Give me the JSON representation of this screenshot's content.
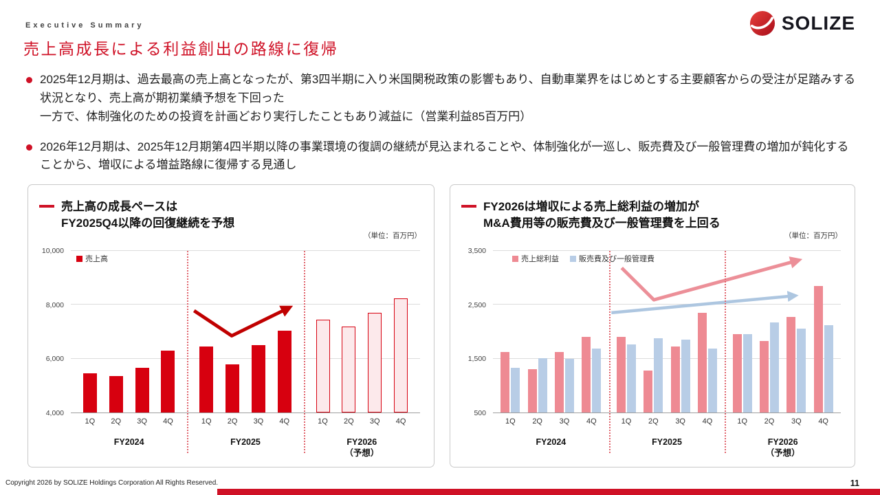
{
  "header": {
    "eyebrow": "Executive Summary",
    "title": "売上高成長による利益創出の路線に復帰",
    "logo_text": "SOLIZE"
  },
  "bullets": [
    "2025年12月期は、過去最高の売上高となったが、第3四半期に入り米国関税政策の影響もあり、自動車業界をはじめとする主要顧客からの受注が足踏みする状況となり、売上高が期初業績予想を下回った\n一方で、体制強化のための投資を計画どおり実行したこともあり減益に（営業利益85百万円）",
    "2026年12月期は、2025年12月期第4四半期以降の事業環境の復調の継続が見込まれることや、体制強化が一巡し、販売費及び一般管理費の増加が鈍化することから、増収による増益路線に復帰する見通し"
  ],
  "colors": {
    "accent_red": "#cf1126",
    "separator_red": "#e0646c",
    "sales_bar": "#d7000f",
    "sales_forecast_fill": "#fce9eb",
    "gross_profit_bar": "#ee8a93",
    "sga_bar": "#b8cde6"
  },
  "chart_data": [
    {
      "type": "bar",
      "title_lines": [
        "売上高の成長ペースは",
        "FY2025Q4以降の回復継続を予想"
      ],
      "unit": "（単位：百万円）",
      "ymin": 4000,
      "ymax": 10000,
      "yticks": [
        {
          "v": 4000,
          "label": "4,000"
        },
        {
          "v": 6000,
          "label": "6,000"
        },
        {
          "v": 8000,
          "label": "8,000"
        },
        {
          "v": 10000,
          "label": "10,000"
        }
      ],
      "quarters": [
        "1Q",
        "2Q",
        "3Q",
        "4Q"
      ],
      "series": [
        {
          "key": "sales",
          "name": "売上高",
          "color": "#d7000f",
          "forecast_fill": "#fce9eb",
          "forecast_border": "#d7000f"
        }
      ],
      "groups": [
        {
          "label": "FY2024",
          "sublabel": "",
          "forecast": false,
          "values": {
            "sales": [
              5450,
              5350,
              5650,
              6300
            ]
          }
        },
        {
          "label": "FY2025",
          "sublabel": "",
          "forecast": false,
          "values": {
            "sales": [
              6450,
              5800,
              6500,
              7050
            ]
          }
        },
        {
          "label": "FY2026",
          "sublabel": "（予想）",
          "forecast": true,
          "values": {
            "sales": [
              7450,
              7200,
              7700,
              8250
            ]
          }
        }
      ]
    },
    {
      "type": "bar",
      "title_lines": [
        "FY2026は増収による売上総利益の増加が",
        "M&A費用等の販売費及び一般管理費を上回る"
      ],
      "unit": "（単位：百万円）",
      "ymin": 500,
      "ymax": 3500,
      "yticks": [
        {
          "v": 500,
          "label": "500"
        },
        {
          "v": 1500,
          "label": "1,500"
        },
        {
          "v": 2500,
          "label": "2,500"
        },
        {
          "v": 3500,
          "label": "3,500"
        }
      ],
      "quarters": [
        "1Q",
        "2Q",
        "3Q",
        "4Q"
      ],
      "series": [
        {
          "key": "gross_profit",
          "name": "売上総利益",
          "color": "#ee8a93"
        },
        {
          "key": "sga",
          "name": "販売費及び一般管理費",
          "color": "#b8cde6"
        }
      ],
      "groups": [
        {
          "label": "FY2024",
          "sublabel": "",
          "forecast": false,
          "values": {
            "gross_profit": [
              1620,
              1300,
              1620,
              1900
            ],
            "sga": [
              1330,
              1510,
              1490,
              1690
            ]
          }
        },
        {
          "label": "FY2025",
          "sublabel": "",
          "forecast": false,
          "values": {
            "gross_profit": [
              1900,
              1280,
              1720,
              2350
            ],
            "sga": [
              1760,
              1880,
              1850,
              1690
            ]
          }
        },
        {
          "label": "FY2026",
          "sublabel": "（予想）",
          "forecast": true,
          "values": {
            "gross_profit": [
              1960,
              1830,
              2270,
              2850
            ],
            "sga": [
              1950,
              2170,
              2060,
              2120
            ]
          }
        }
      ]
    }
  ],
  "footer": {
    "copyright": "Copyright 2026 by SOLIZE Holdings Corporation All Rights Reserved.",
    "page_number": "11"
  }
}
